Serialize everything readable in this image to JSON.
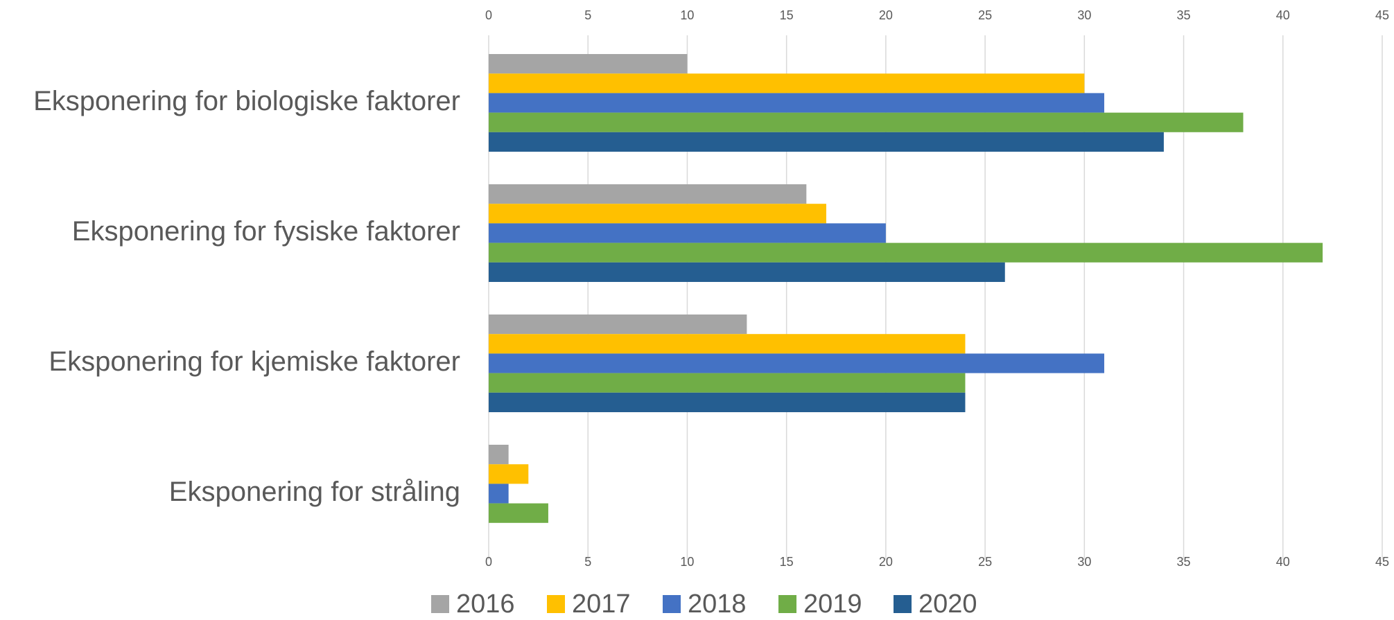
{
  "chart_data": {
    "type": "bar",
    "orientation": "horizontal",
    "categories": [
      "Eksponering for biologiske faktorer",
      "Eksponering for fysiske faktorer",
      "Eksponering for kjemiske faktorer",
      "Eksponering for stråling"
    ],
    "series": [
      {
        "name": "2016",
        "color": "#a5a5a5",
        "values": [
          10,
          16,
          13,
          1
        ]
      },
      {
        "name": "2017",
        "color": "#ffc000",
        "values": [
          30,
          17,
          24,
          2
        ]
      },
      {
        "name": "2018",
        "color": "#4472c4",
        "values": [
          31,
          20,
          31,
          1
        ]
      },
      {
        "name": "2019",
        "color": "#70ad47",
        "values": [
          38,
          42,
          24,
          3
        ]
      },
      {
        "name": "2020",
        "color": "#255e91",
        "values": [
          34,
          26,
          24,
          0
        ]
      }
    ],
    "xlim": [
      0,
      45
    ],
    "xticks": [
      0,
      5,
      10,
      15,
      20,
      25,
      30,
      35,
      40,
      45
    ],
    "grid": true,
    "legend": "bottom"
  }
}
